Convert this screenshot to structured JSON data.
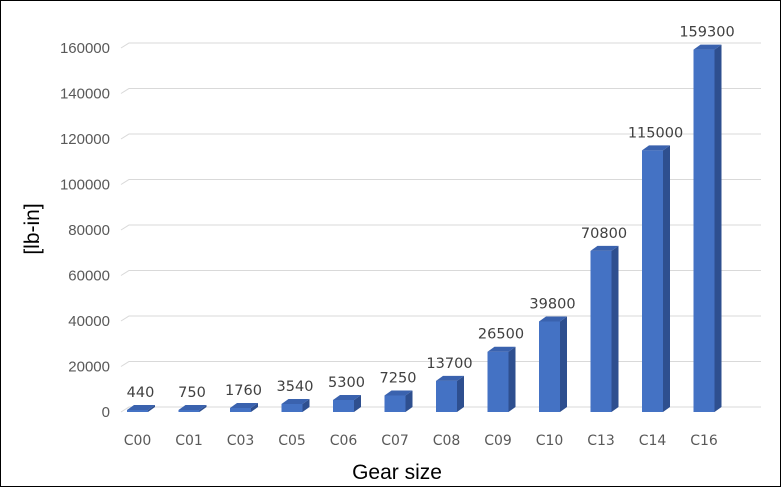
{
  "chart_data": {
    "type": "bar",
    "style": "3d-column",
    "xlabel": "Gear size",
    "ylabel": "[lb-in]",
    "categories": [
      "C00",
      "C01",
      "C03",
      "C05",
      "C06",
      "C07",
      "C08",
      "C09",
      "C10",
      "C13",
      "C14",
      "C16"
    ],
    "values": [
      440,
      750,
      1760,
      3540,
      5300,
      7250,
      13700,
      26500,
      39800,
      70800,
      115000,
      159300
    ],
    "yticks": [
      0,
      20000,
      40000,
      60000,
      80000,
      100000,
      120000,
      140000,
      160000
    ],
    "ylim": [
      0,
      160000
    ],
    "grid": true,
    "legend": "none",
    "data_labels": true,
    "colors": {
      "bar_front": "#4472C4",
      "bar_side": "#2E4F8F",
      "bar_top": "#3A62AE",
      "grid": "#D9D9D9",
      "text": "#595959"
    }
  }
}
